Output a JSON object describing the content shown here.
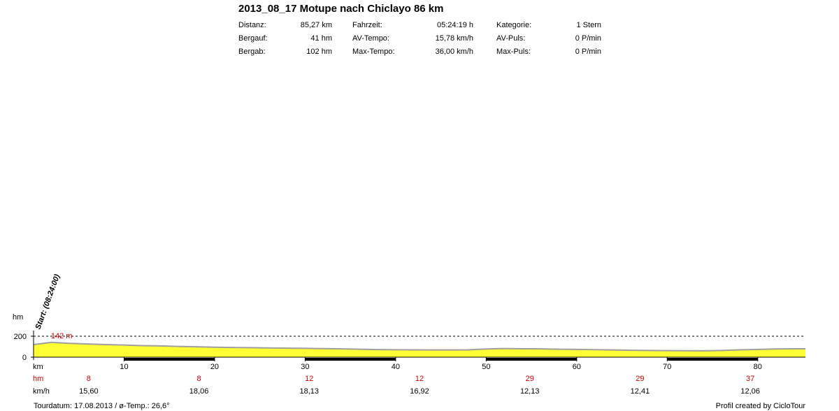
{
  "header": {
    "title": "2013_08_17 Motupe nach Chiclayo 86 km",
    "stats": [
      [
        {
          "label": "Distanz:",
          "value": "85,27 km"
        },
        {
          "label": "Fahrzeit:",
          "value": "05:24:19 h"
        },
        {
          "label": "Kategorie:",
          "value": "1 Stern"
        }
      ],
      [
        {
          "label": "Bergauf:",
          "value": "41 hm"
        },
        {
          "label": "AV-Tempo:",
          "value": "15,78 km/h"
        },
        {
          "label": "AV-Puls:",
          "value": "0 P/min"
        }
      ],
      [
        {
          "label": "Bergab:",
          "value": "102 hm"
        },
        {
          "label": "Max-Tempo:",
          "value": "36,00 km/h"
        },
        {
          "label": "Max-Puls:",
          "value": "0 P/min"
        }
      ]
    ]
  },
  "chart_data": {
    "type": "area",
    "ylabel": "hm",
    "xlabel": "km",
    "xlim": [
      0,
      85.27
    ],
    "ylim": [
      0,
      200
    ],
    "y_ticks": [
      "200",
      "0"
    ],
    "x_ticks": [
      "10",
      "20",
      "30",
      "40",
      "50",
      "60",
      "70",
      "80"
    ],
    "reference_line": {
      "value": 200,
      "style": "dashed"
    },
    "max_label": "142 m",
    "start_label": "Start: (08:24:00)",
    "elevation": {
      "x": [
        0,
        2,
        4,
        6,
        8,
        10,
        12,
        14,
        16,
        18,
        20,
        22,
        24,
        26,
        28,
        30,
        32,
        34,
        36,
        38,
        40,
        42,
        44,
        46,
        48,
        50,
        52,
        54,
        56,
        58,
        60,
        62,
        64,
        66,
        68,
        70,
        72,
        74,
        76,
        78,
        80,
        82,
        84,
        85.27
      ],
      "y": [
        120,
        142,
        132,
        126,
        120,
        116,
        110,
        107,
        103,
        99,
        95,
        93,
        91,
        88,
        86,
        84,
        82,
        79,
        76,
        73,
        71,
        70,
        69,
        69,
        70,
        78,
        83,
        80,
        79,
        76,
        74,
        72,
        69,
        66,
        64,
        63,
        62,
        61,
        64,
        70,
        74,
        78,
        80,
        80
      ]
    },
    "segments": {
      "hm_label": "hm",
      "speed_label": "km/h",
      "hm": [
        "8",
        "8",
        "12",
        "12",
        "29",
        "29",
        "37"
      ],
      "speed": [
        "15,60",
        "18,06",
        "18,13",
        "16,92",
        "12,13",
        "12,41",
        "12,06"
      ]
    }
  },
  "footer": {
    "left": "Tourdatum: 17.08.2013  /  ø-Temp.: 26,6°",
    "right": "Profil created by CicloTour"
  },
  "colors": {
    "fill": "#ffff33",
    "stroke": "#a0a0a0",
    "hm_text": "#cc0000",
    "black_bar": "#000000"
  }
}
